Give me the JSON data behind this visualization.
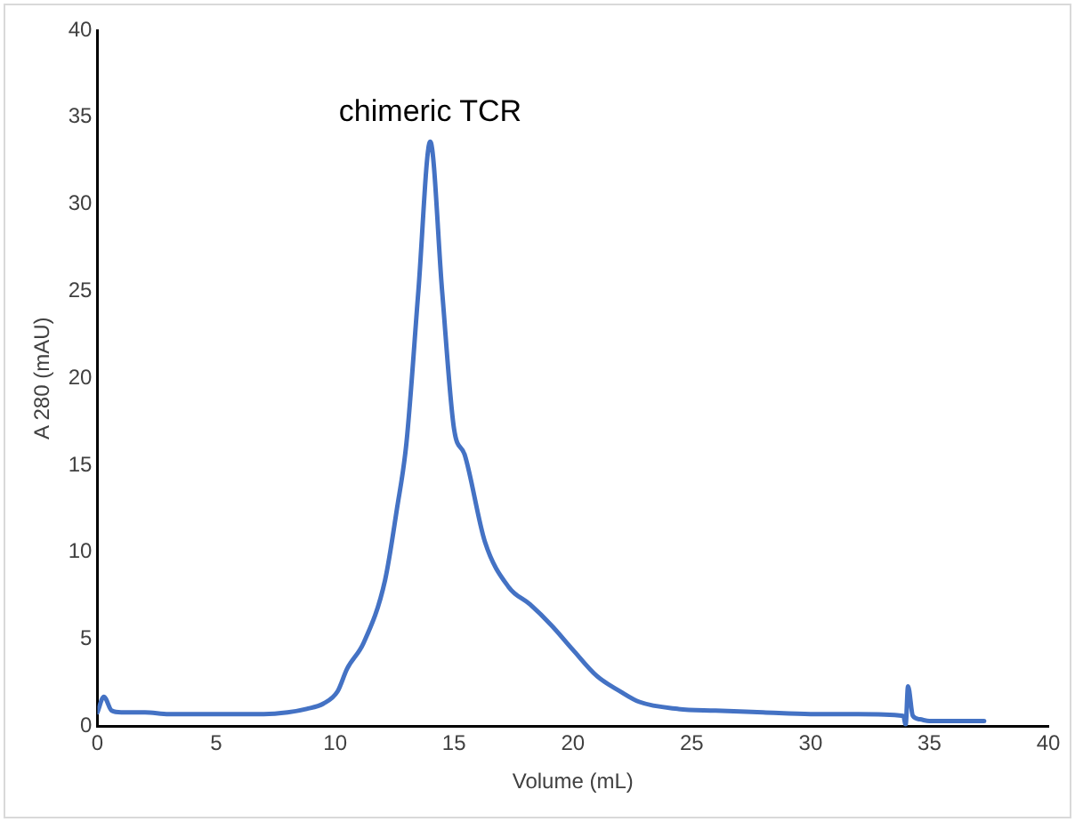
{
  "chart_data": {
    "type": "line",
    "xlabel": "Volume (mL)",
    "ylabel": "A 280 (mAU)",
    "x": [
      0,
      0.27,
      0.6,
      1,
      2,
      3,
      5,
      7,
      8,
      8.8,
      9.5,
      10.1,
      10.5,
      11.2,
      12.1,
      12.6,
      13,
      13.5,
      14,
      14.5,
      15,
      15.45,
      16.3,
      17.3,
      18.2,
      19.1,
      20,
      21,
      22,
      22.8,
      24.4,
      26,
      28,
      30,
      32,
      33.9,
      34.0,
      34.1,
      34.3,
      34.6,
      35,
      36,
      37.3
    ],
    "series": [
      {
        "color": "#4472c4",
        "values": [
          0.8,
          1.7,
          0.9,
          0.8,
          0.8,
          0.7,
          0.7,
          0.7,
          0.8,
          1.0,
          1.3,
          2.0,
          3.3,
          4.8,
          8.4,
          12.5,
          16.3,
          25,
          33.6,
          25,
          17.1,
          15.6,
          10.6,
          8.0,
          7.0,
          5.8,
          4.4,
          2.9,
          2.0,
          1.4,
          1.0,
          0.9,
          0.8,
          0.7,
          0.7,
          0.6,
          0.1,
          2.3,
          0.6,
          0.4,
          0.3,
          0.3,
          0.3
        ]
      }
    ],
    "xlim": [
      0,
      40
    ],
    "xticks": [
      0,
      5,
      10,
      15,
      20,
      25,
      30,
      35,
      40
    ],
    "ylim": [
      0,
      40
    ],
    "yticks": [
      0,
      5,
      10,
      15,
      20,
      25,
      30,
      35,
      40
    ],
    "grid": false,
    "legend": false,
    "marker": "none",
    "line_style": "solid",
    "annotations": [
      {
        "text": "chimeric TCR",
        "x": 14,
        "y": 33.6
      }
    ]
  }
}
